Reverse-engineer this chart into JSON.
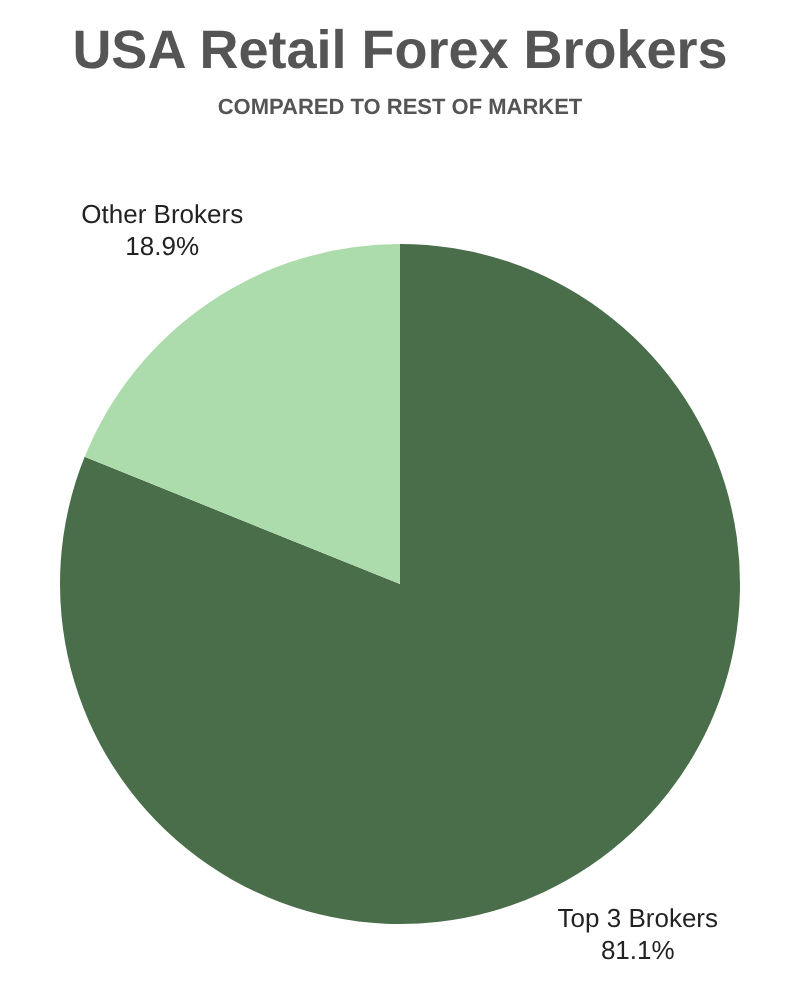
{
  "chart_data": {
    "type": "pie",
    "title": "USA Retail Forex Brokers",
    "subtitle": "COMPARED TO REST OF MARKET",
    "categories": [
      "Top 3 Brokers",
      "Other Brokers"
    ],
    "values": [
      81.1,
      18.9
    ],
    "colors": [
      "#4a6e4a",
      "#acdcac"
    ],
    "value_labels": [
      "81.1%",
      "18.9%"
    ],
    "legend": false
  }
}
